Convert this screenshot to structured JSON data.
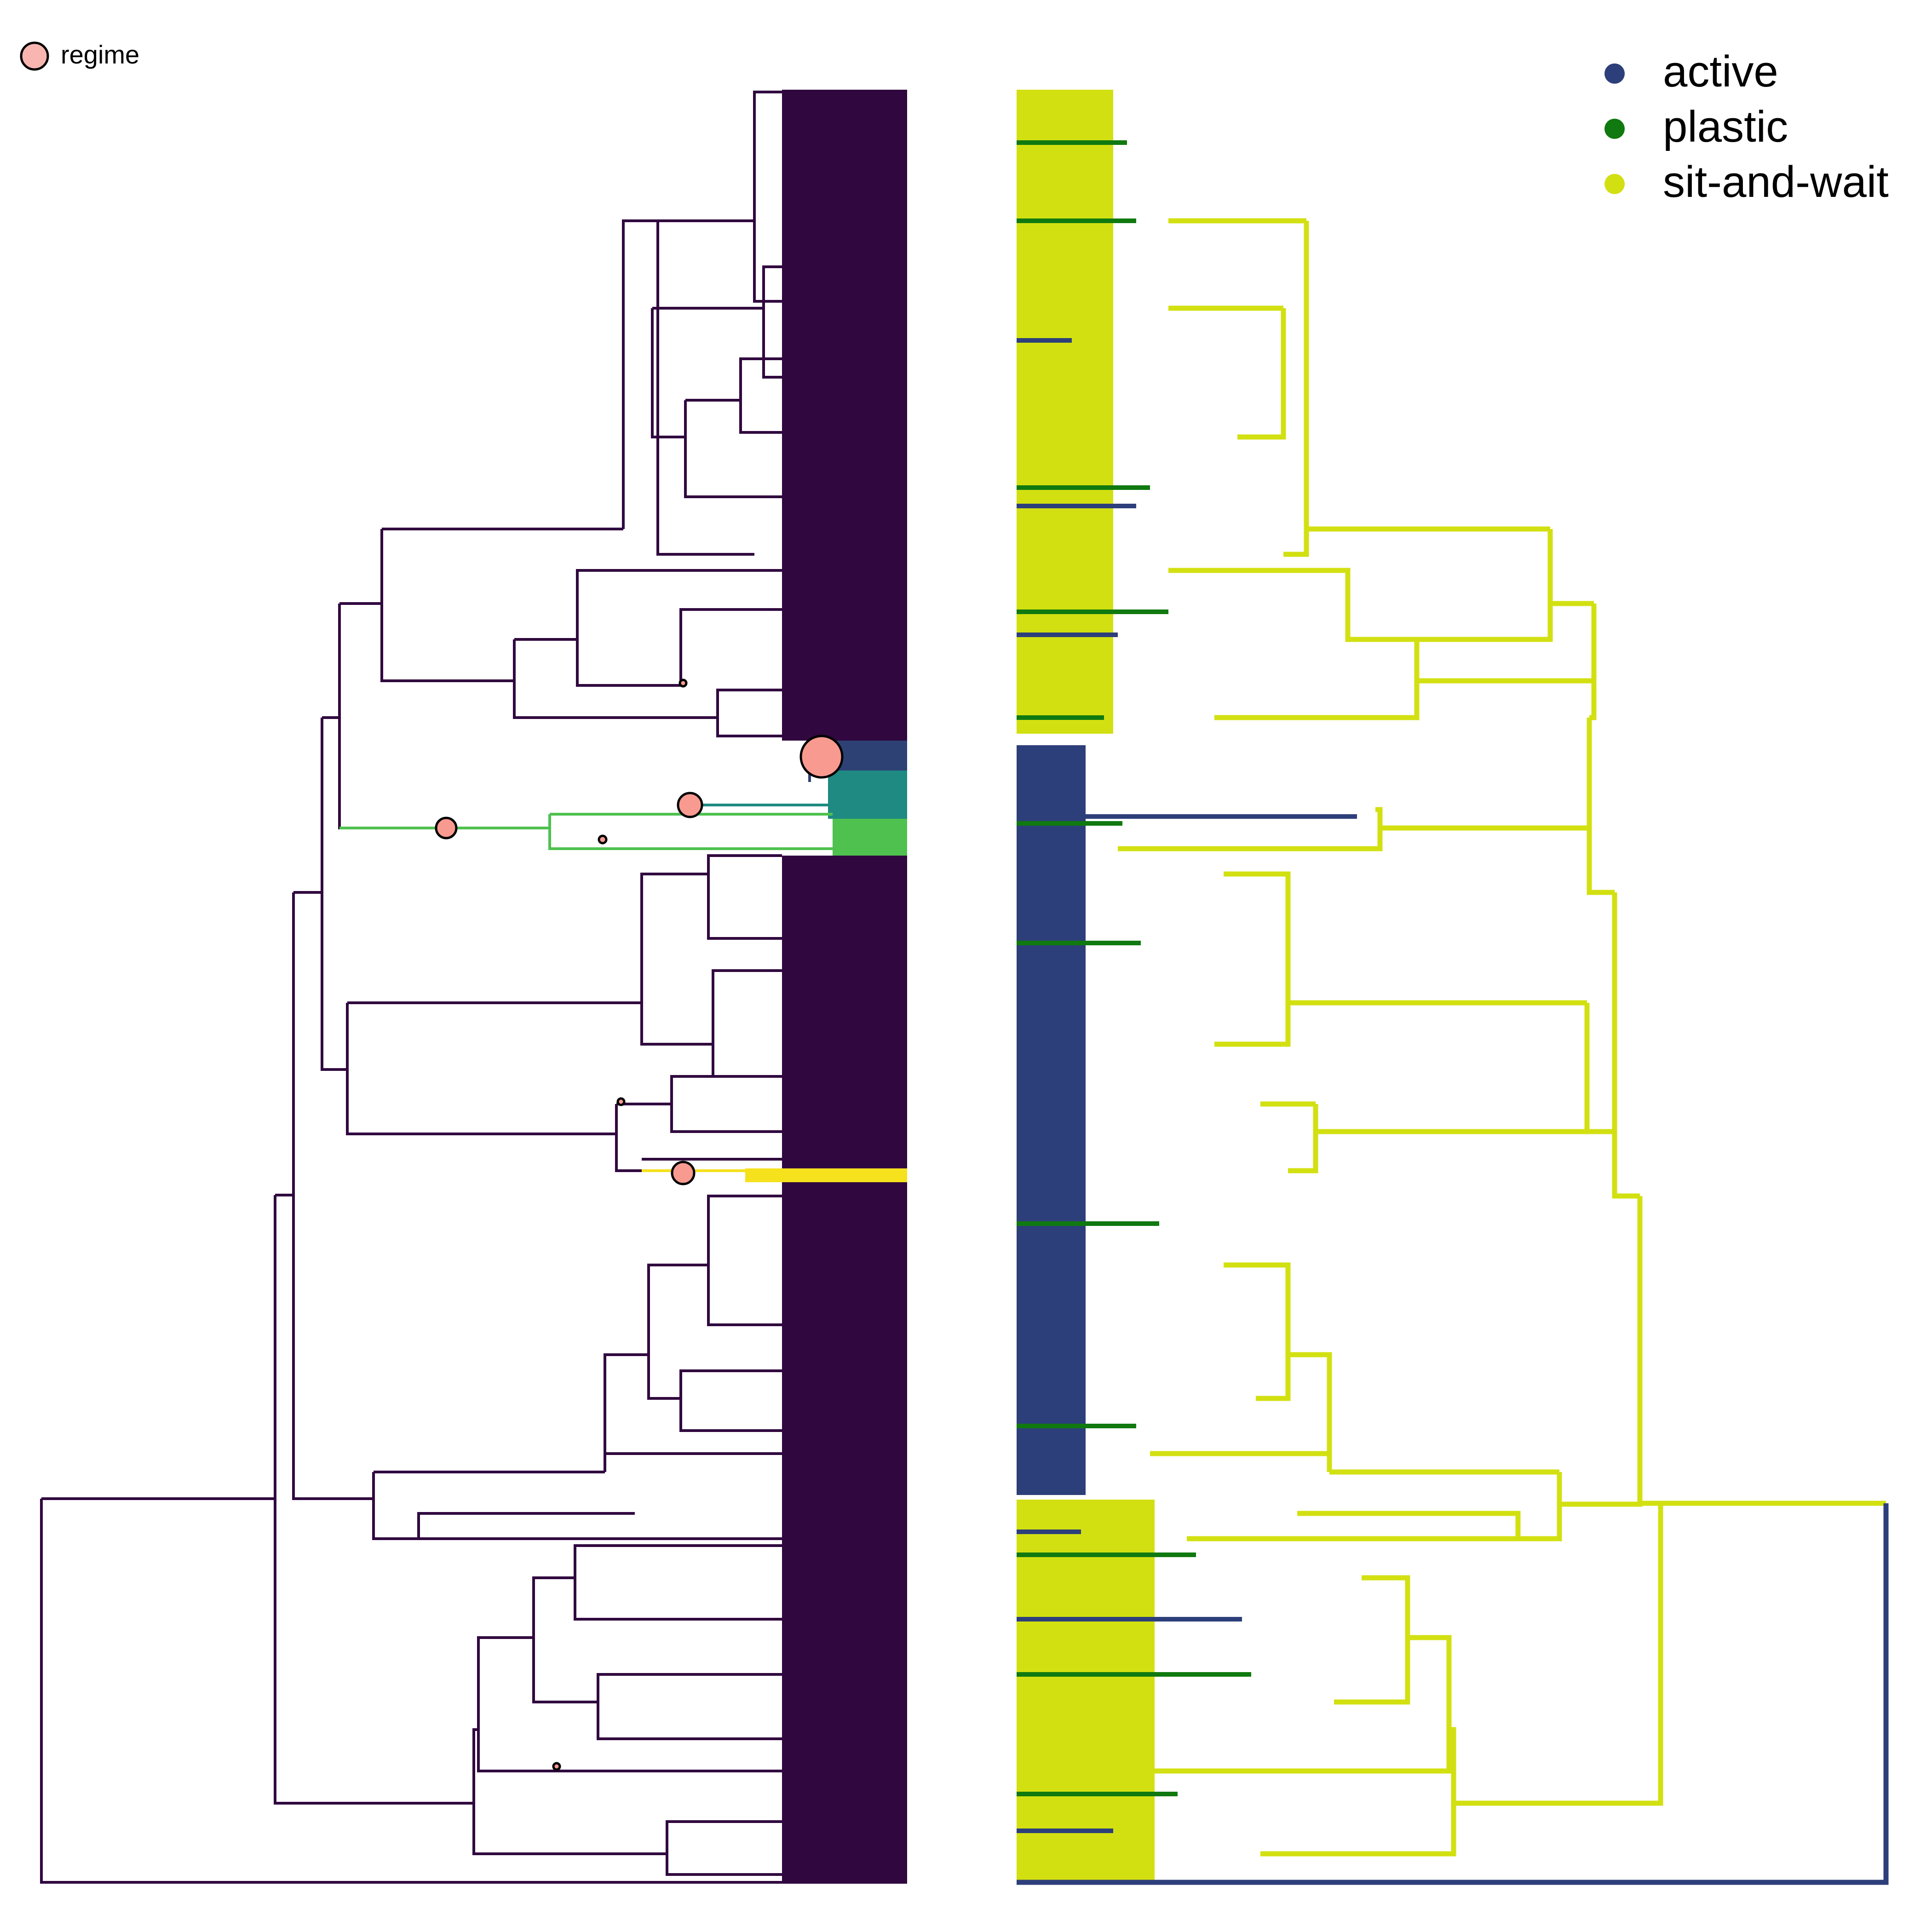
{
  "left_legend": {
    "label": "regime",
    "marker_color": "#f9b5b0"
  },
  "right_legend": {
    "items": [
      {
        "label": "active",
        "color": "#2d3f7a"
      },
      {
        "label": "plastic",
        "color": "#10790f"
      },
      {
        "label": "sit-and-wait",
        "color": "#d2e011"
      }
    ]
  },
  "colors": {
    "regime_base": "#30073f",
    "regime_blue": "#2d4175",
    "regime_teal": "#1f8a82",
    "regime_green": "#4fc14f",
    "regime_yellow": "#f6e11d",
    "regime_marker": "#f89a90"
  }
}
